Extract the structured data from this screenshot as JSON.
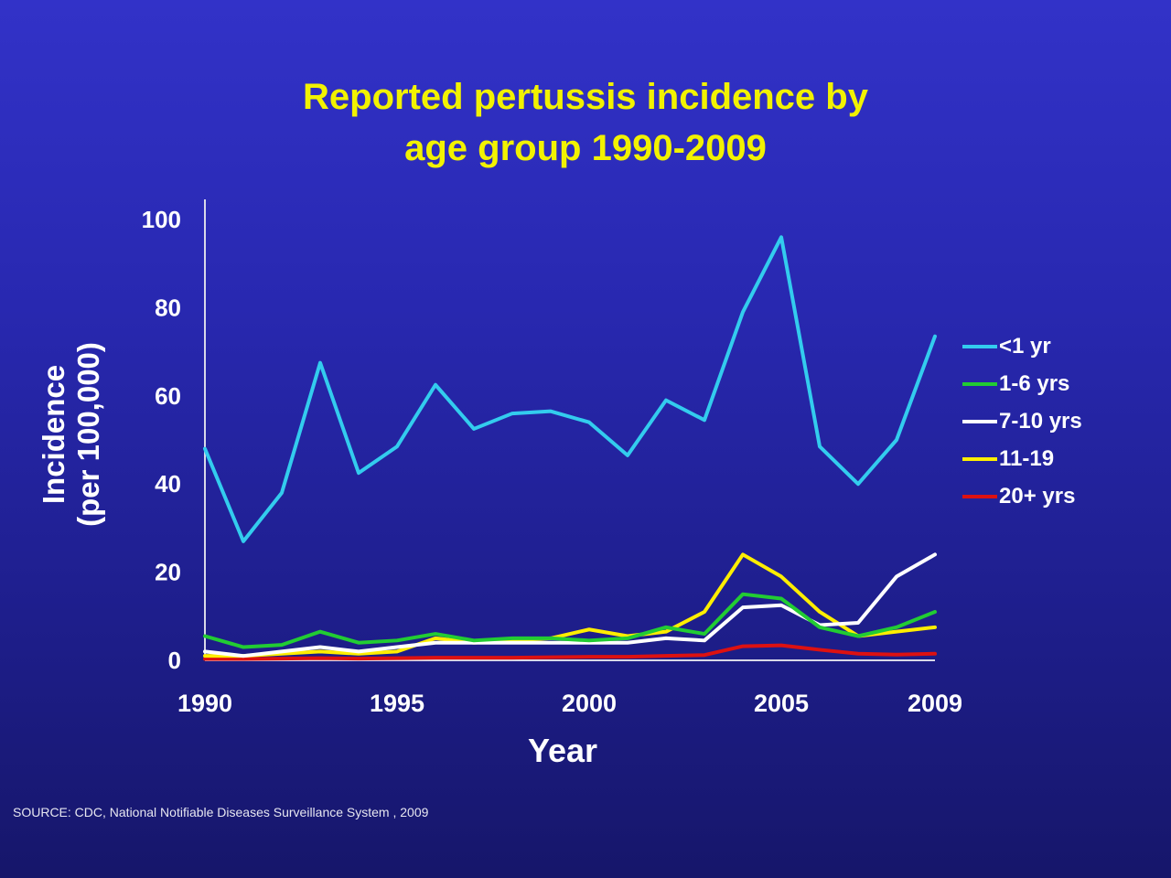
{
  "source_note": "SOURCE: CDC, National Notifiable Diseases Surveillance System , 2009",
  "chart_data": {
    "type": "line",
    "title_lines": [
      "Reported pertussis incidence by",
      "age group 1990-2009"
    ],
    "xlabel": "Year",
    "ylabel_lines": [
      "Incidence",
      "(per 100,000)"
    ],
    "x": [
      1990,
      1991,
      1992,
      1993,
      1994,
      1995,
      1996,
      1997,
      1998,
      1999,
      2000,
      2001,
      2002,
      2003,
      2004,
      2005,
      2006,
      2007,
      2008,
      2009
    ],
    "x_ticks": [
      "1990",
      "1995",
      "2000",
      "2005",
      "2009"
    ],
    "xlim": [
      1990,
      2009
    ],
    "y_ticks": [
      "0",
      "20",
      "40",
      "60",
      "80",
      "100"
    ],
    "ylim": [
      0,
      100
    ],
    "grid": false,
    "legend_position": "right",
    "series": [
      {
        "name": "<1 yr",
        "color": "#33ccee",
        "values": [
          48,
          27,
          38,
          67.5,
          42.5,
          48.5,
          62.5,
          52.5,
          56,
          56.5,
          54,
          46.5,
          59,
          54.5,
          79,
          96,
          48.5,
          40,
          50,
          73.5
        ]
      },
      {
        "name": "1-6 yrs",
        "color": "#22cc33",
        "values": [
          5.5,
          3,
          3.5,
          6.5,
          4,
          4.5,
          6,
          4.5,
          5,
          5,
          4.5,
          5,
          7.5,
          6,
          15,
          14,
          7.5,
          5.5,
          7.5,
          11
        ]
      },
      {
        "name": "7-10 yrs",
        "color": "#ffffff",
        "values": [
          2,
          1,
          2,
          3,
          2,
          3,
          4,
          4,
          4,
          4,
          4,
          4,
          5,
          4.5,
          12,
          12.5,
          8,
          8.5,
          19,
          24
        ]
      },
      {
        "name": "11-19",
        "color": "#ffee00",
        "values": [
          1,
          1,
          1.5,
          2,
          1.5,
          2,
          5,
          4,
          4.5,
          5,
          7,
          5.5,
          6.5,
          11,
          24,
          19,
          11,
          5.5,
          6.5,
          7.5
        ]
      },
      {
        "name": "20+ yrs",
        "color": "#dd1111",
        "values": [
          0.3,
          0.3,
          0.4,
          0.5,
          0.4,
          0.5,
          0.6,
          0.6,
          0.6,
          0.7,
          0.8,
          0.8,
          1,
          1.2,
          3.2,
          3.4,
          2.4,
          1.5,
          1.3,
          1.5
        ]
      }
    ]
  }
}
